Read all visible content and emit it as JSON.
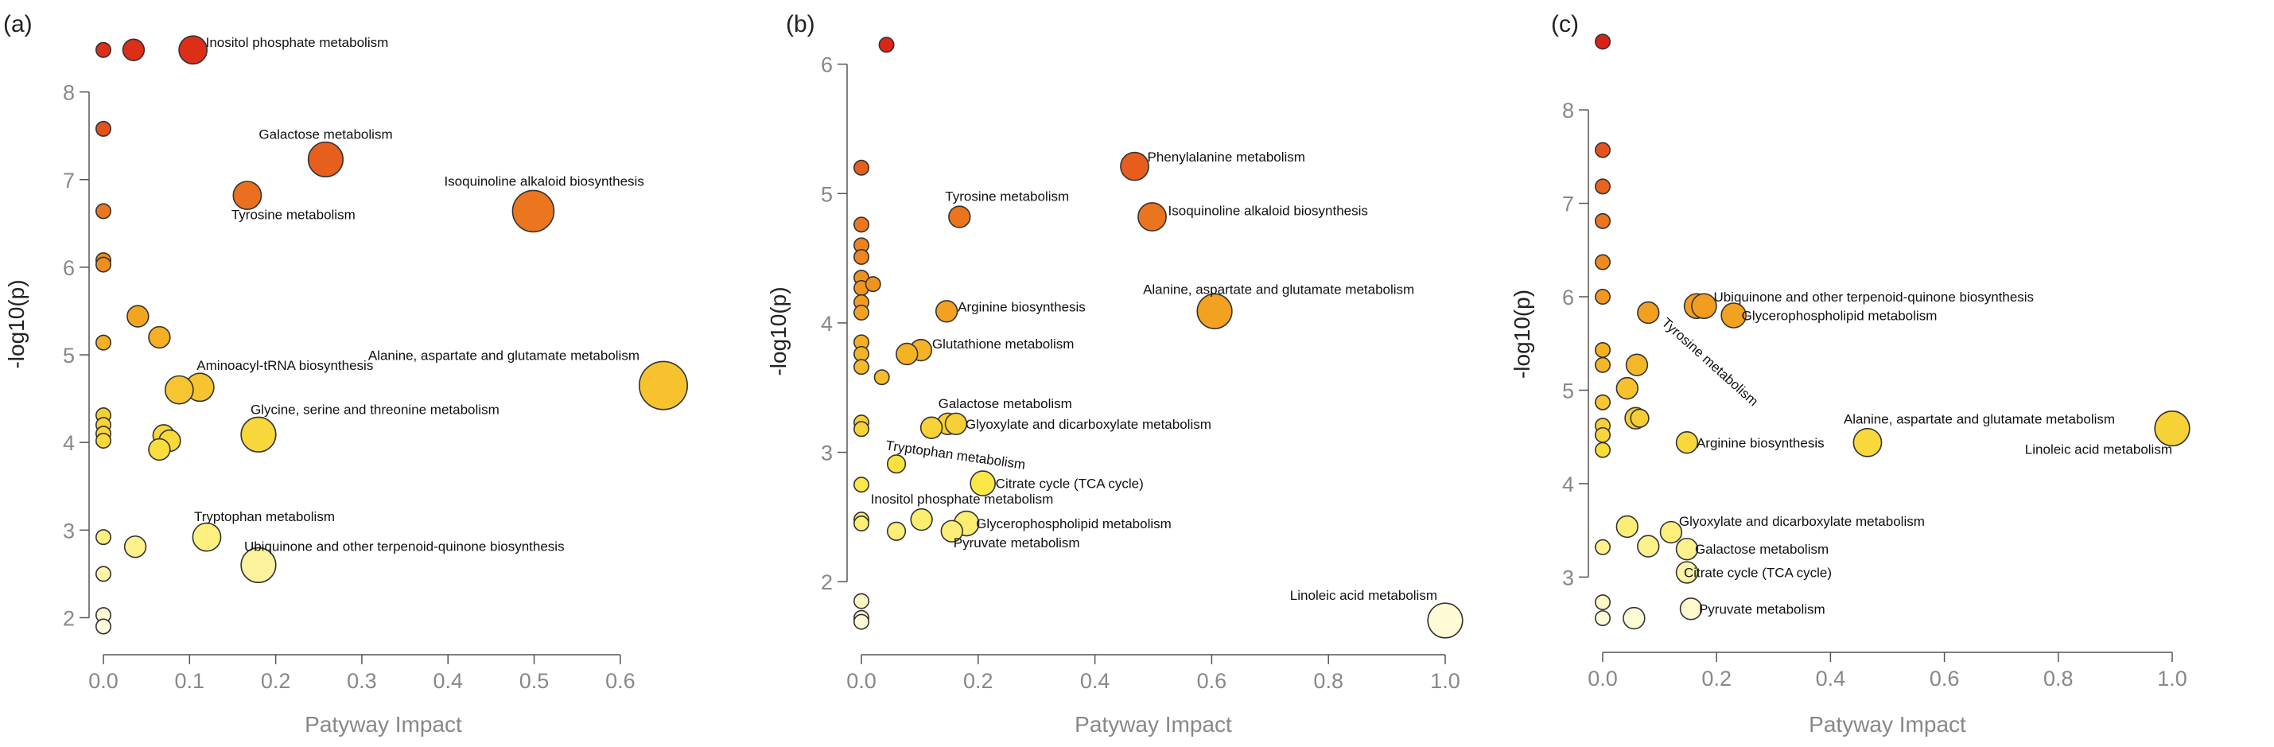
{
  "chart_data": [
    {
      "type": "scatter",
      "panel": "(a)",
      "xlabel": "Patyway Impact",
      "ylabel": "-log10(p)",
      "xlim": [
        0,
        0.65
      ],
      "ylim": [
        1.85,
        8.85
      ],
      "xticks": [
        "0.0",
        "0.1",
        "0.2",
        "0.3",
        "0.4",
        "0.5",
        "0.6"
      ],
      "yticks": [
        "2",
        "3",
        "4",
        "5",
        "6",
        "7",
        "8"
      ],
      "points": [
        {
          "x": 0.0,
          "y": 8.48,
          "size": 1
        },
        {
          "x": 0.035,
          "y": 8.48,
          "size": 2
        },
        {
          "x": 0.104,
          "y": 8.48,
          "size": 3,
          "label": "Inositol phosphate metabolism"
        },
        {
          "x": 0.0,
          "y": 7.58,
          "size": 1
        },
        {
          "x": 0.258,
          "y": 7.23,
          "size": 4,
          "label": "Galactose metabolism"
        },
        {
          "x": 0.167,
          "y": 6.82,
          "size": 3,
          "label": "Tyrosine metabolism"
        },
        {
          "x": 0.499,
          "y": 6.64,
          "size": 5,
          "label": "Isoquinoline alkaloid biosynthesis"
        },
        {
          "x": 0.0,
          "y": 6.64,
          "size": 1
        },
        {
          "x": 0.0,
          "y": 6.08,
          "size": 1
        },
        {
          "x": 0.0,
          "y": 6.03,
          "size": 1
        },
        {
          "x": 0.04,
          "y": 5.44,
          "size": 2
        },
        {
          "x": 0.065,
          "y": 5.2,
          "size": 2
        },
        {
          "x": 0.0,
          "y": 5.14,
          "size": 1
        },
        {
          "x": 0.65,
          "y": 4.65,
          "size": 6,
          "label": "Alanine, aspartate and glutamate metabolism"
        },
        {
          "x": 0.112,
          "y": 4.63,
          "size": 3,
          "label": "Aminoacyl-tRNA biosynthesis"
        },
        {
          "x": 0.088,
          "y": 4.6,
          "size": 3
        },
        {
          "x": 0.0,
          "y": 4.31,
          "size": 1
        },
        {
          "x": 0.0,
          "y": 4.2,
          "size": 1
        },
        {
          "x": 0.0,
          "y": 4.1,
          "size": 1
        },
        {
          "x": 0.0,
          "y": 4.02,
          "size": 1
        },
        {
          "x": 0.18,
          "y": 4.09,
          "size": 4,
          "label": "Glycine, serine and threonine metabolism"
        },
        {
          "x": 0.07,
          "y": 4.08,
          "size": 2
        },
        {
          "x": 0.077,
          "y": 4.02,
          "size": 2
        },
        {
          "x": 0.065,
          "y": 3.92,
          "size": 2
        },
        {
          "x": 0.12,
          "y": 2.92,
          "size": 3,
          "label": "Tryptophan metabolism"
        },
        {
          "x": 0.0,
          "y": 2.92,
          "size": 1
        },
        {
          "x": 0.037,
          "y": 2.81,
          "size": 2
        },
        {
          "x": 0.18,
          "y": 2.6,
          "size": 4,
          "label": "Ubiquinone and other terpenoid-quinone biosynthesis"
        },
        {
          "x": 0.0,
          "y": 2.5,
          "size": 1
        },
        {
          "x": 0.0,
          "y": 2.03,
          "size": 1
        },
        {
          "x": 0.0,
          "y": 1.9,
          "size": 1
        }
      ]
    },
    {
      "type": "scatter",
      "panel": "(b)",
      "xlabel": "Patyway Impact",
      "ylabel": "-log10(p)",
      "xlim": [
        0,
        1.0
      ],
      "ylim": [
        1.62,
        6.25
      ],
      "xticks": [
        "0.0",
        "0.2",
        "0.4",
        "0.6",
        "0.8",
        "1.0"
      ],
      "yticks": [
        "2",
        "3",
        "4",
        "5",
        "6"
      ],
      "points": [
        {
          "x": 0.043,
          "y": 6.15,
          "size": 1
        },
        {
          "x": 0.468,
          "y": 5.21,
          "size": 3,
          "label": "Phenylalanine metabolism"
        },
        {
          "x": 0.0,
          "y": 5.2,
          "size": 1
        },
        {
          "x": 0.168,
          "y": 4.82,
          "size": 2,
          "label": "Tyrosine metabolism"
        },
        {
          "x": 0.498,
          "y": 4.82,
          "size": 3,
          "label": "Isoquinoline alkaloid biosynthesis"
        },
        {
          "x": 0.0,
          "y": 4.76,
          "size": 1
        },
        {
          "x": 0.0,
          "y": 4.6,
          "size": 1
        },
        {
          "x": 0.0,
          "y": 4.51,
          "size": 1
        },
        {
          "x": 0.0,
          "y": 4.35,
          "size": 1
        },
        {
          "x": 0.0,
          "y": 4.27,
          "size": 1
        },
        {
          "x": 0.02,
          "y": 4.3,
          "size": 1
        },
        {
          "x": 0.0,
          "y": 4.16,
          "size": 1
        },
        {
          "x": 0.0,
          "y": 4.08,
          "size": 1
        },
        {
          "x": 0.605,
          "y": 4.09,
          "size": 4,
          "label": "Alanine, aspartate and glutamate metabolism"
        },
        {
          "x": 0.146,
          "y": 4.09,
          "size": 2,
          "label": "Arginine biosynthesis"
        },
        {
          "x": 0.0,
          "y": 3.85,
          "size": 1
        },
        {
          "x": 0.0,
          "y": 3.76,
          "size": 1
        },
        {
          "x": 0.102,
          "y": 3.79,
          "size": 2,
          "label": "Glutathione metabolism"
        },
        {
          "x": 0.078,
          "y": 3.76,
          "size": 2
        },
        {
          "x": 0.0,
          "y": 3.66,
          "size": 1
        },
        {
          "x": 0.035,
          "y": 3.58,
          "size": 1
        },
        {
          "x": 0.0,
          "y": 3.23,
          "size": 1
        },
        {
          "x": 0.0,
          "y": 3.18,
          "size": 1
        },
        {
          "x": 0.148,
          "y": 3.22,
          "size": 2,
          "label": "Galactose metabolism"
        },
        {
          "x": 0.162,
          "y": 3.22,
          "size": 2,
          "label": "Glyoxylate and dicarboxylate metabolism"
        },
        {
          "x": 0.12,
          "y": 3.19,
          "size": 2
        },
        {
          "x": 0.06,
          "y": 2.91,
          "size": 1.5,
          "label": "Tryptophan metabolism"
        },
        {
          "x": 0.0,
          "y": 2.75,
          "size": 1
        },
        {
          "x": 0.208,
          "y": 2.76,
          "size": 2.5,
          "label": "Citrate cycle (TCA cycle)"
        },
        {
          "x": 0.103,
          "y": 2.48,
          "size": 2,
          "label": "Inositol phosphate metabolism"
        },
        {
          "x": 0.0,
          "y": 2.48,
          "size": 1
        },
        {
          "x": 0.0,
          "y": 2.45,
          "size": 1
        },
        {
          "x": 0.18,
          "y": 2.45,
          "size": 2.5,
          "label": "Glycerophospholipid metabolism"
        },
        {
          "x": 0.06,
          "y": 2.39,
          "size": 1.5
        },
        {
          "x": 0.155,
          "y": 2.39,
          "size": 2,
          "label": "Pyruvate metabolism"
        },
        {
          "x": 0.0,
          "y": 1.85,
          "size": 1
        },
        {
          "x": 0.0,
          "y": 1.72,
          "size": 1
        },
        {
          "x": 0.0,
          "y": 1.69,
          "size": 1
        },
        {
          "x": 1.0,
          "y": 1.7,
          "size": 4,
          "label": "Linoleic acid metabolism"
        }
      ]
    },
    {
      "type": "scatter",
      "panel": "(c)",
      "xlabel": "Patyway Impact",
      "ylabel": "-log10(p)",
      "xlim": [
        0,
        1.0
      ],
      "ylim": [
        2.45,
        8.75
      ],
      "xticks": [
        "0.0",
        "0.2",
        "0.4",
        "0.6",
        "0.8",
        "1.0"
      ],
      "yticks": [
        "3",
        "4",
        "5",
        "6",
        "7",
        "8"
      ],
      "points": [
        {
          "x": 0.0,
          "y": 8.73,
          "size": 1
        },
        {
          "x": 0.0,
          "y": 7.57,
          "size": 1
        },
        {
          "x": 0.0,
          "y": 7.18,
          "size": 1
        },
        {
          "x": 0.0,
          "y": 6.81,
          "size": 1
        },
        {
          "x": 0.0,
          "y": 6.37,
          "size": 1
        },
        {
          "x": 0.0,
          "y": 6.0,
          "size": 1
        },
        {
          "x": 0.165,
          "y": 5.9,
          "size": 2.5
        },
        {
          "x": 0.178,
          "y": 5.9,
          "size": 2.5,
          "label": "Ubiquinone and other terpenoid-quinone biosynthesis"
        },
        {
          "x": 0.23,
          "y": 5.8,
          "size": 2.5,
          "label": "Glycerophospholipid metabolism"
        },
        {
          "x": 0.08,
          "y": 5.83,
          "size": 2,
          "label": "Tyrosine metabolism"
        },
        {
          "x": 0.0,
          "y": 5.43,
          "size": 1
        },
        {
          "x": 0.0,
          "y": 5.27,
          "size": 1
        },
        {
          "x": 0.06,
          "y": 5.27,
          "size": 2
        },
        {
          "x": 0.043,
          "y": 5.02,
          "size": 2
        },
        {
          "x": 0.0,
          "y": 4.87,
          "size": 1
        },
        {
          "x": 0.058,
          "y": 4.7,
          "size": 2
        },
        {
          "x": 0.065,
          "y": 4.7,
          "size": 1.5
        },
        {
          "x": 0.0,
          "y": 4.62,
          "size": 1
        },
        {
          "x": 0.0,
          "y": 4.52,
          "size": 1
        },
        {
          "x": 0.0,
          "y": 4.36,
          "size": 1
        },
        {
          "x": 1.0,
          "y": 4.59,
          "size": 4,
          "label": "Linoleic acid metabolism"
        },
        {
          "x": 0.465,
          "y": 4.44,
          "size": 3,
          "label": "Alanine, aspartate and glutamate metabolism"
        },
        {
          "x": 0.148,
          "y": 4.44,
          "size": 2,
          "label": "Arginine biosynthesis"
        },
        {
          "x": 0.0,
          "y": 3.32,
          "size": 1
        },
        {
          "x": 0.043,
          "y": 3.54,
          "size": 2
        },
        {
          "x": 0.12,
          "y": 3.48,
          "size": 2,
          "label": "Glyoxylate and dicarboxylate metabolism"
        },
        {
          "x": 0.08,
          "y": 3.33,
          "size": 2
        },
        {
          "x": 0.148,
          "y": 3.3,
          "size": 2,
          "label": "Galactose metabolism"
        },
        {
          "x": 0.148,
          "y": 3.05,
          "size": 2,
          "label": "Citrate cycle (TCA cycle)"
        },
        {
          "x": 0.0,
          "y": 2.73,
          "size": 1
        },
        {
          "x": 0.0,
          "y": 2.56,
          "size": 1
        },
        {
          "x": 0.055,
          "y": 2.56,
          "size": 2
        },
        {
          "x": 0.155,
          "y": 2.66,
          "size": 2,
          "label": "Pyruvate metabolism"
        }
      ]
    }
  ]
}
